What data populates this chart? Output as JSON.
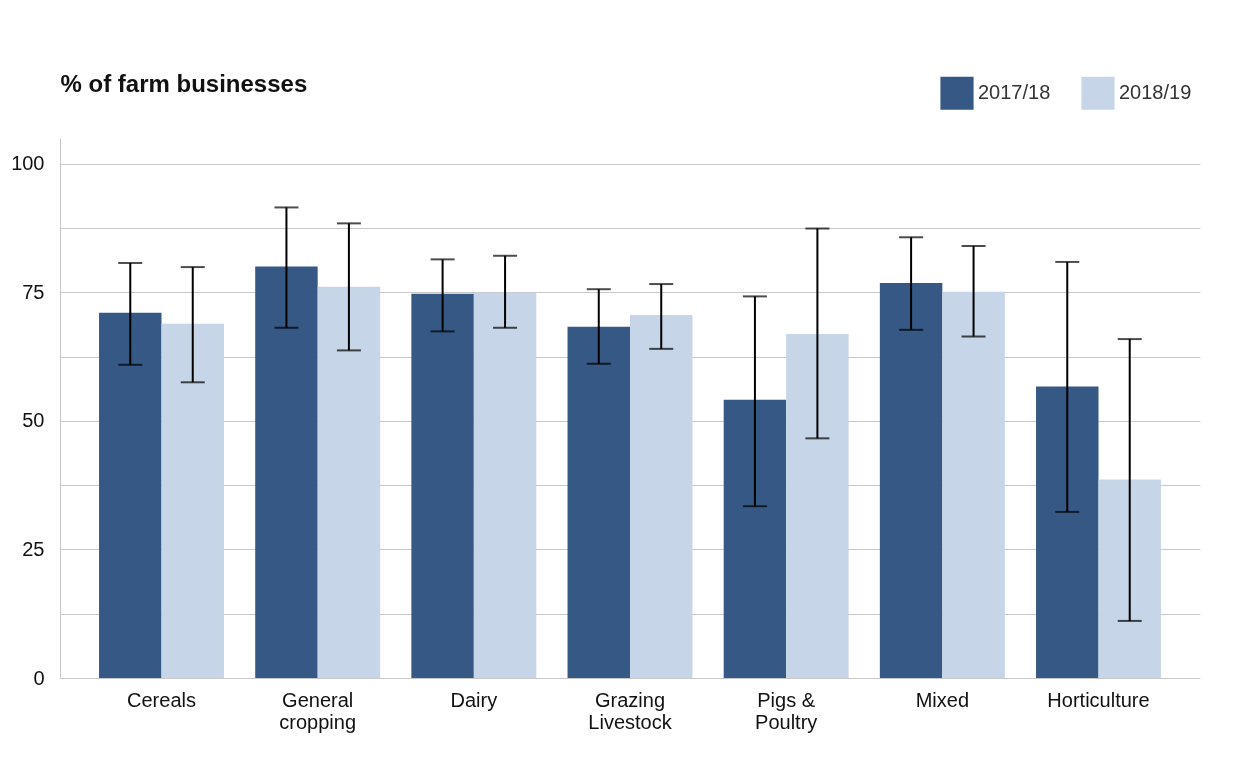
{
  "chart_data": {
    "type": "bar",
    "ylabel": "% of farm businesses",
    "categories": [
      "Cereals",
      "General cropping",
      "Dairy",
      "Grazing Livestock",
      "Pigs & Poultry",
      "Mixed",
      "Horticulture"
    ],
    "series": [
      {
        "name": "2017/18",
        "color": "#365885",
        "values": [
          71.0,
          80.0,
          74.7,
          68.3,
          54.1,
          76.8,
          56.7
        ],
        "errors": [
          [
            60.9,
            80.7
          ],
          [
            68.1,
            91.5
          ],
          [
            67.4,
            81.4
          ],
          [
            61.1,
            75.6
          ],
          [
            33.4,
            74.2
          ],
          [
            67.7,
            85.7
          ],
          [
            32.3,
            80.9
          ]
        ]
      },
      {
        "name": "2018/19",
        "color": "#c6d5e8",
        "values": [
          68.9,
          76.1,
          74.9,
          70.6,
          66.9,
          75.1,
          38.6
        ],
        "errors": [
          [
            57.5,
            79.9
          ],
          [
            63.7,
            88.4
          ],
          [
            68.1,
            82.1
          ],
          [
            64.0,
            76.6
          ],
          [
            46.6,
            87.4
          ],
          [
            66.4,
            84.0
          ],
          [
            11.1,
            65.9
          ]
        ]
      }
    ],
    "ylim": [
      0,
      105
    ],
    "yticks": [
      0,
      {
        "value": 12.5,
        "label": null
      },
      25,
      {
        "value": 37.5,
        "label": null
      },
      50,
      {
        "value": 62.5,
        "label": null
      },
      75,
      {
        "value": 87.5,
        "label": null
      },
      100
    ],
    "grid": "y",
    "legend": "top right"
  }
}
